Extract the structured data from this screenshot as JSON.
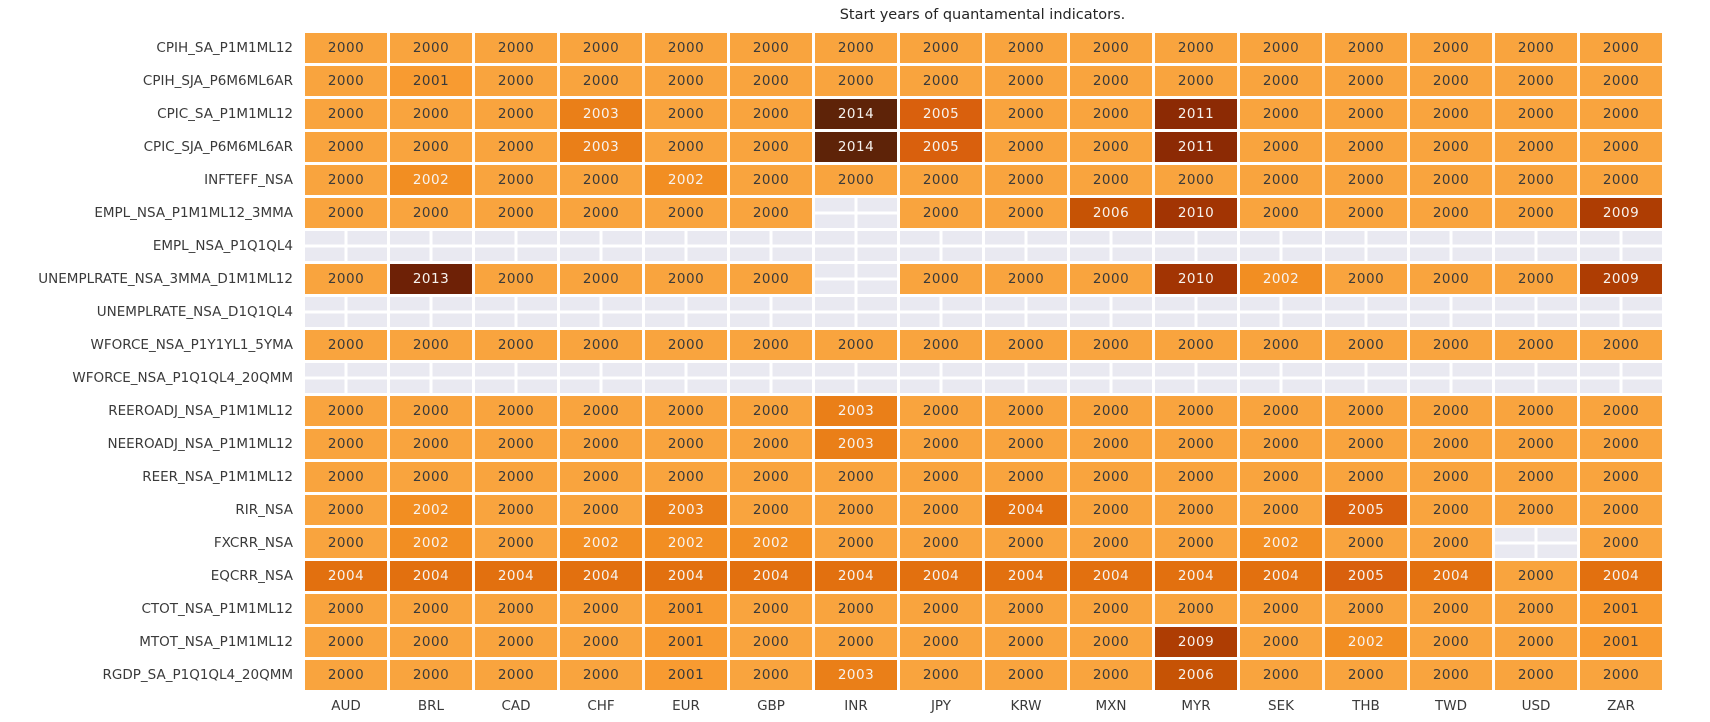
{
  "chart_data": {
    "type": "heatmap",
    "title": "Start years of quantamental indicators.",
    "legend_position": "none",
    "grid_line_color": "#ffffff",
    "missing_cell_color": "#e9e9f1",
    "text_colors": {
      "dark": "#3a3a3a",
      "light": "#f7f3ef"
    },
    "dark_text_years": [
      2000,
      2001
    ],
    "color_scale": {
      "2000": "#f9a43e",
      "2001": "#f89b31",
      "2002": "#f28e22",
      "2003": "#ea7f18",
      "2004": "#e2700f",
      "2005": "#d9600d",
      "2006": "#c65305",
      "2009": "#ae3d03",
      "2010": "#a23403",
      "2011": "#8c2a04",
      "2013": "#6e2106",
      "2014": "#5e2308"
    },
    "columns": [
      "AUD",
      "BRL",
      "CAD",
      "CHF",
      "EUR",
      "GBP",
      "INR",
      "JPY",
      "KRW",
      "MXN",
      "MYR",
      "SEK",
      "THB",
      "TWD",
      "USD",
      "ZAR"
    ],
    "rows": [
      "CPIH_SA_P1M1ML12",
      "CPIH_SJA_P6M6ML6AR",
      "CPIC_SA_P1M1ML12",
      "CPIC_SJA_P6M6ML6AR",
      "INFTEFF_NSA",
      "EMPL_NSA_P1M1ML12_3MMA",
      "EMPL_NSA_P1Q1QL4",
      "UNEMPLRATE_NSA_3MMA_D1M1ML12",
      "UNEMPLRATE_NSA_D1Q1QL4",
      "WFORCE_NSA_P1Y1YL1_5YMA",
      "WFORCE_NSA_P1Q1QL4_20QMM",
      "REEROADJ_NSA_P1M1ML12",
      "NEEROADJ_NSA_P1M1ML12",
      "REER_NSA_P1M1ML12",
      "RIR_NSA",
      "FXCRR_NSA",
      "EQCRR_NSA",
      "CTOT_NSA_P1M1ML12",
      "MTOT_NSA_P1M1ML12",
      "RGDP_SA_P1Q1QL4_20QMM"
    ],
    "values": [
      [
        2000,
        2000,
        2000,
        2000,
        2000,
        2000,
        2000,
        2000,
        2000,
        2000,
        2000,
        2000,
        2000,
        2000,
        2000,
        2000
      ],
      [
        2000,
        2001,
        2000,
        2000,
        2000,
        2000,
        2000,
        2000,
        2000,
        2000,
        2000,
        2000,
        2000,
        2000,
        2000,
        2000
      ],
      [
        2000,
        2000,
        2000,
        2003,
        2000,
        2000,
        2014,
        2005,
        2000,
        2000,
        2011,
        2000,
        2000,
        2000,
        2000,
        2000
      ],
      [
        2000,
        2000,
        2000,
        2003,
        2000,
        2000,
        2014,
        2005,
        2000,
        2000,
        2011,
        2000,
        2000,
        2000,
        2000,
        2000
      ],
      [
        2000,
        2002,
        2000,
        2000,
        2002,
        2000,
        2000,
        2000,
        2000,
        2000,
        2000,
        2000,
        2000,
        2000,
        2000,
        2000
      ],
      [
        2000,
        2000,
        2000,
        2000,
        2000,
        2000,
        null,
        2000,
        2000,
        2006,
        2010,
        2000,
        2000,
        2000,
        2000,
        2009
      ],
      [
        null,
        null,
        null,
        null,
        null,
        null,
        null,
        null,
        null,
        null,
        null,
        null,
        null,
        null,
        null,
        null
      ],
      [
        2000,
        2013,
        2000,
        2000,
        2000,
        2000,
        null,
        2000,
        2000,
        2000,
        2010,
        2002,
        2000,
        2000,
        2000,
        2009
      ],
      [
        null,
        null,
        null,
        null,
        null,
        null,
        null,
        null,
        null,
        null,
        null,
        null,
        null,
        null,
        null,
        null
      ],
      [
        2000,
        2000,
        2000,
        2000,
        2000,
        2000,
        2000,
        2000,
        2000,
        2000,
        2000,
        2000,
        2000,
        2000,
        2000,
        2000
      ],
      [
        null,
        null,
        null,
        null,
        null,
        null,
        null,
        null,
        null,
        null,
        null,
        null,
        null,
        null,
        null,
        null
      ],
      [
        2000,
        2000,
        2000,
        2000,
        2000,
        2000,
        2003,
        2000,
        2000,
        2000,
        2000,
        2000,
        2000,
        2000,
        2000,
        2000
      ],
      [
        2000,
        2000,
        2000,
        2000,
        2000,
        2000,
        2003,
        2000,
        2000,
        2000,
        2000,
        2000,
        2000,
        2000,
        2000,
        2000
      ],
      [
        2000,
        2000,
        2000,
        2000,
        2000,
        2000,
        2000,
        2000,
        2000,
        2000,
        2000,
        2000,
        2000,
        2000,
        2000,
        2000
      ],
      [
        2000,
        2002,
        2000,
        2000,
        2003,
        2000,
        2000,
        2000,
        2004,
        2000,
        2000,
        2000,
        2005,
        2000,
        2000,
        2000
      ],
      [
        2000,
        2002,
        2000,
        2002,
        2002,
        2002,
        2000,
        2000,
        2000,
        2000,
        2000,
        2002,
        2000,
        2000,
        null,
        2000
      ],
      [
        2004,
        2004,
        2004,
        2004,
        2004,
        2004,
        2004,
        2004,
        2004,
        2004,
        2004,
        2004,
        2005,
        2004,
        2000,
        2004
      ],
      [
        2000,
        2000,
        2000,
        2000,
        2001,
        2000,
        2000,
        2000,
        2000,
        2000,
        2000,
        2000,
        2000,
        2000,
        2000,
        2001
      ],
      [
        2000,
        2000,
        2000,
        2000,
        2001,
        2000,
        2000,
        2000,
        2000,
        2000,
        2009,
        2000,
        2002,
        2000,
        2000,
        2001
      ],
      [
        2000,
        2000,
        2000,
        2000,
        2001,
        2000,
        2003,
        2000,
        2000,
        2000,
        2006,
        2000,
        2000,
        2000,
        2000,
        2000
      ]
    ]
  }
}
